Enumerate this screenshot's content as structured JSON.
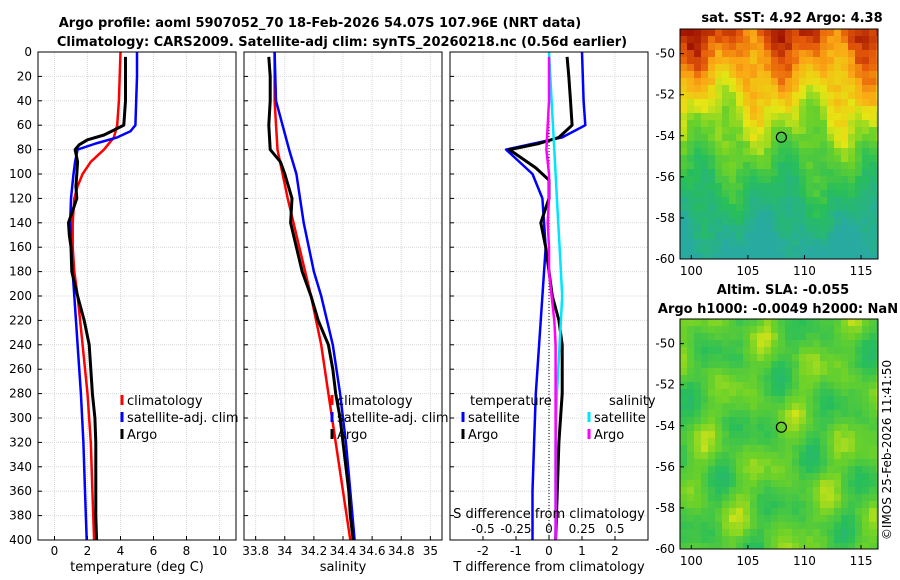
{
  "header": {
    "line1": "Argo profile: aoml 5907052_70 18-Feb-2026 54.07S 107.96E (NRT data)",
    "line2": "Climatology: CARS2009. Satellite-adj clim: synTS_20260218.nc (0.56d earlier)"
  },
  "sst_map": {
    "title": "sat. SST: 4.92 Argo: 4.38",
    "x_ticks": [
      "100",
      "105",
      "110",
      "115"
    ],
    "y_ticks": [
      "-50",
      "-52",
      "-54",
      "-56",
      "-58",
      "-60"
    ],
    "xlim": [
      99,
      116.5
    ],
    "ylim": [
      -60,
      -48.8
    ],
    "marker": {
      "lon": 107.96,
      "lat": -54.07
    }
  },
  "sla_map": {
    "title1": "Altim. SLA: -0.055",
    "title2": "Argo h1000: -0.0049 h2000: NaN",
    "x_ticks": [
      "100",
      "105",
      "110",
      "115"
    ],
    "y_ticks": [
      "-50",
      "-52",
      "-54",
      "-56",
      "-58",
      "-60"
    ],
    "xlim": [
      99,
      116.5
    ],
    "ylim": [
      -60,
      -48.8
    ],
    "marker": {
      "lon": 107.96,
      "lat": -54.07
    }
  },
  "watermark": "©IMOS 25-Feb-2026 11:41:50",
  "colors": {
    "climatology": "#ff0000",
    "satellite": "#0000ff",
    "argo": "#000000",
    "sat_salinity": "#00e5ff",
    "argo_salinity": "#ff00ff"
  },
  "chart_data": [
    {
      "type": "line",
      "xlabel": "temperature (deg C)",
      "ylabel": "",
      "xlim": [
        -1,
        11
      ],
      "ylim": [
        400,
        0
      ],
      "x_ticks": [
        "0",
        "2",
        "4",
        "6",
        "8",
        "10"
      ],
      "y_ticks": [
        "0",
        "20",
        "40",
        "60",
        "80",
        "100",
        "120",
        "140",
        "160",
        "180",
        "200",
        "220",
        "240",
        "260",
        "280",
        "300",
        "320",
        "340",
        "360",
        "380",
        "400"
      ],
      "grid": true,
      "legend": {
        "position": "lower-right",
        "labels": [
          "climatology",
          "satellite-adj. clim",
          "Argo"
        ]
      },
      "series": [
        {
          "name": "climatology",
          "depth": [
            0,
            20,
            40,
            60,
            70,
            80,
            90,
            100,
            110,
            120,
            140,
            160,
            180,
            200,
            240,
            280,
            320,
            360,
            400
          ],
          "values": [
            4.0,
            3.95,
            3.9,
            3.8,
            3.6,
            3.0,
            2.2,
            1.7,
            1.4,
            1.2,
            1.1,
            1.1,
            1.2,
            1.4,
            1.7,
            2.0,
            2.2,
            2.3,
            2.4
          ]
        },
        {
          "name": "satellite-adj. clim",
          "depth": [
            0,
            20,
            40,
            60,
            65,
            70,
            75,
            80,
            90,
            100,
            120,
            140,
            160,
            200,
            240,
            280,
            320,
            360,
            400
          ],
          "values": [
            5.0,
            5.0,
            4.95,
            4.9,
            4.6,
            3.8,
            2.5,
            1.4,
            1.25,
            1.15,
            1.0,
            0.95,
            1.0,
            1.2,
            1.4,
            1.6,
            1.75,
            1.85,
            1.95
          ]
        },
        {
          "name": "Argo",
          "depth": [
            4,
            20,
            40,
            60,
            68,
            72,
            76,
            80,
            90,
            100,
            110,
            120,
            130,
            140,
            150,
            160,
            180,
            200,
            220,
            240,
            260,
            280,
            300,
            320,
            340,
            360,
            380,
            400
          ],
          "values": [
            4.3,
            4.3,
            4.3,
            4.2,
            3.0,
            2.0,
            1.5,
            1.25,
            1.4,
            1.35,
            1.3,
            1.35,
            1.1,
            0.85,
            0.9,
            1.0,
            1.05,
            1.4,
            1.8,
            2.1,
            2.2,
            2.3,
            2.45,
            2.5,
            2.5,
            2.5,
            2.5,
            2.55
          ]
        }
      ]
    },
    {
      "type": "line",
      "xlabel": "salinity",
      "ylabel": "",
      "xlim": [
        33.72,
        35.08
      ],
      "ylim": [
        400,
        0
      ],
      "x_ticks": [
        "33.8",
        "34",
        "34.2",
        "34.4",
        "34.6",
        "34.8",
        "35"
      ],
      "grid": true,
      "legend": {
        "position": "lower-right",
        "labels": [
          "climatology",
          "satellite-adj. clim",
          "Argo"
        ]
      },
      "series": [
        {
          "name": "climatology",
          "depth": [
            0,
            40,
            80,
            120,
            160,
            200,
            240,
            280,
            320,
            360,
            400
          ],
          "values": [
            33.93,
            33.93,
            33.95,
            34.02,
            34.1,
            34.18,
            34.25,
            34.3,
            34.35,
            34.4,
            34.45
          ]
        },
        {
          "name": "satellite-adj. clim",
          "depth": [
            0,
            40,
            80,
            100,
            140,
            180,
            200,
            240,
            280,
            320,
            360,
            400
          ],
          "values": [
            33.93,
            33.94,
            34.03,
            34.08,
            34.13,
            34.2,
            34.25,
            34.33,
            34.38,
            34.42,
            34.45,
            34.48
          ]
        },
        {
          "name": "Argo",
          "depth": [
            4,
            20,
            40,
            60,
            80,
            90,
            100,
            120,
            140,
            160,
            180,
            200,
            220,
            240,
            260,
            280,
            300,
            320,
            340,
            360,
            380,
            400
          ],
          "values": [
            33.89,
            33.9,
            33.9,
            33.89,
            33.9,
            33.97,
            34.0,
            34.05,
            34.04,
            34.08,
            34.12,
            34.18,
            34.23,
            34.3,
            34.33,
            34.35,
            34.38,
            34.4,
            34.42,
            34.44,
            34.45,
            34.47
          ]
        }
      ]
    },
    {
      "type": "line",
      "xlabel": "T difference from climatology",
      "xlabel_top": "S difference from climatology",
      "xlim": [
        -3,
        3
      ],
      "ylim": [
        400,
        0
      ],
      "x_ticks": [
        "-2",
        "-1",
        "0",
        "1",
        "2"
      ],
      "x_ticks_top": [
        "-0.5",
        "-0.25",
        "0",
        "0.25",
        "0.5"
      ],
      "grid": true,
      "legend_temperature": {
        "title": "temperature",
        "labels": [
          "satellite",
          "Argo"
        ]
      },
      "legend_salinity": {
        "title": "salinity",
        "labels": [
          "satellite",
          "Argo"
        ]
      },
      "series": [
        {
          "name": "temperature satellite",
          "depth": [
            0,
            40,
            60,
            70,
            80,
            100,
            120,
            160,
            200,
            240,
            280,
            320,
            360,
            400
          ],
          "values": [
            1.0,
            1.05,
            1.1,
            0.4,
            -1.3,
            -0.5,
            -0.2,
            -0.1,
            -0.2,
            -0.3,
            -0.4,
            -0.45,
            -0.5,
            -0.5
          ]
        },
        {
          "name": "temperature Argo",
          "depth": [
            4,
            20,
            40,
            60,
            70,
            75,
            80,
            95,
            105,
            120,
            140,
            160,
            180,
            200,
            220,
            240,
            280,
            320,
            360,
            400
          ],
          "values": [
            0.55,
            0.6,
            0.65,
            0.7,
            0.3,
            -0.3,
            -1.2,
            -0.4,
            0.0,
            0.0,
            -0.25,
            -0.1,
            0.0,
            0.1,
            0.3,
            0.4,
            0.4,
            0.3,
            0.25,
            0.2
          ]
        },
        {
          "name": "salinity satellite",
          "depth": [
            0,
            40,
            80,
            120,
            160,
            200,
            240,
            280,
            320,
            360,
            400
          ],
          "values": [
            0.0,
            0.02,
            0.04,
            0.06,
            0.08,
            0.1,
            0.08,
            0.06,
            0.05,
            0.05,
            0.05
          ]
        },
        {
          "name": "salinity Argo",
          "depth": [
            4,
            40,
            80,
            100,
            120,
            140,
            160,
            180,
            200,
            220,
            240,
            280,
            320,
            360,
            400
          ],
          "values": [
            0.0,
            0.0,
            -0.02,
            0.0,
            0.0,
            -0.01,
            0.0,
            0.0,
            0.02,
            0.04,
            0.05,
            0.05,
            0.05,
            0.05,
            0.05
          ]
        }
      ]
    }
  ]
}
